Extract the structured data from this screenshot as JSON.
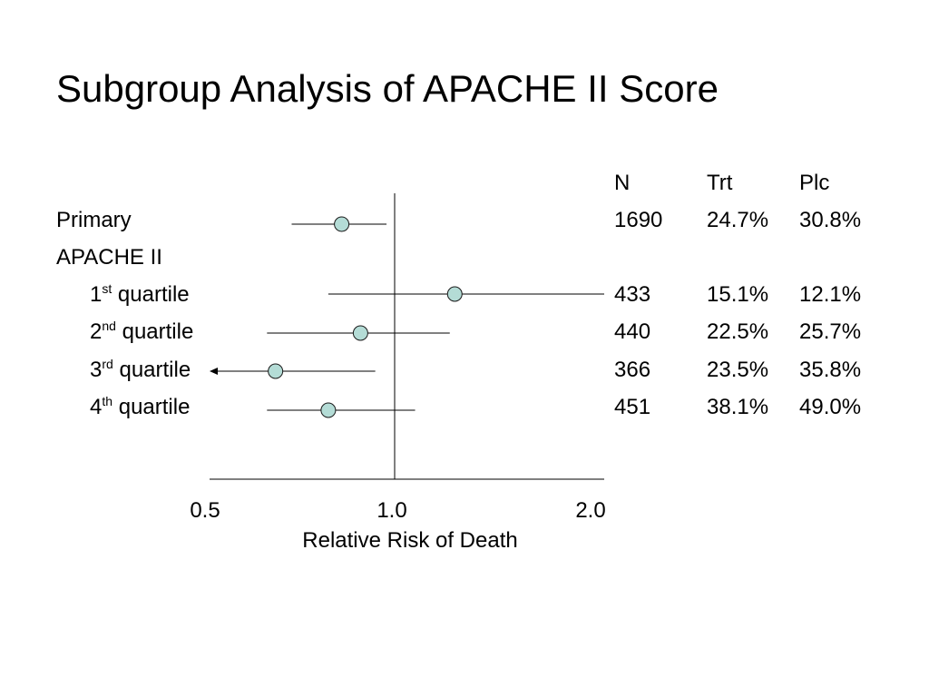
{
  "title": "Subgroup Analysis of APACHE II Score",
  "rows": [
    {
      "label": "Primary",
      "sup": "",
      "suffix": ""
    },
    {
      "label": "APACHE II",
      "sup": "",
      "suffix": ""
    },
    {
      "label": "1",
      "sup": "st",
      "suffix": " quartile"
    },
    {
      "label": "2",
      "sup": "nd",
      "suffix": " quartile"
    },
    {
      "label": "3",
      "sup": "rd",
      "suffix": " quartile"
    },
    {
      "label": "4",
      "sup": "th",
      "suffix": " quartile"
    }
  ],
  "table": {
    "headers": [
      "N",
      "Trt",
      "Plc"
    ],
    "rows": [
      {
        "n": "1690",
        "trt": "24.7%",
        "plc": "30.8%"
      },
      {
        "n": "",
        "trt": "",
        "plc": ""
      },
      {
        "n": "433",
        "trt": "15.1%",
        "plc": "12.1%"
      },
      {
        "n": "440",
        "trt": "22.5%",
        "plc": "25.7%"
      },
      {
        "n": "366",
        "trt": "23.5%",
        "plc": "35.8%"
      },
      {
        "n": "451",
        "trt": "38.1%",
        "plc": "49.0%"
      }
    ]
  },
  "colors": {
    "marker_fill": "#b4dcd6",
    "marker_stroke": "#1a1a1a",
    "line": "#000000"
  },
  "chart_data": {
    "type": "scatter",
    "title": "Subgroup Analysis of APACHE II Score",
    "xlabel": "Relative Risk of Death",
    "ylabel": "",
    "x_scale": "log",
    "xlim": [
      0.5,
      2.0
    ],
    "x_ticks": [
      "0.5",
      "1.0",
      "2.0"
    ],
    "reference_line": 1.0,
    "grid": false,
    "series": [
      {
        "points": [
          {
            "row": 0,
            "label": "Primary",
            "estimate": 0.82,
            "lower": 0.68,
            "upper": 0.97
          },
          {
            "row": 2,
            "label": "1st quartile",
            "estimate": 1.22,
            "lower": 0.78,
            "upper": 2.0
          },
          {
            "row": 3,
            "label": "2nd quartile",
            "estimate": 0.88,
            "lower": 0.62,
            "upper": 1.2
          },
          {
            "row": 4,
            "label": "3rd quartile",
            "estimate": 0.64,
            "lower": 0.5,
            "upper": 0.93,
            "lower_arrow": true
          },
          {
            "row": 5,
            "label": "4th quartile",
            "estimate": 0.78,
            "lower": 0.62,
            "upper": 1.07
          }
        ]
      }
    ]
  }
}
